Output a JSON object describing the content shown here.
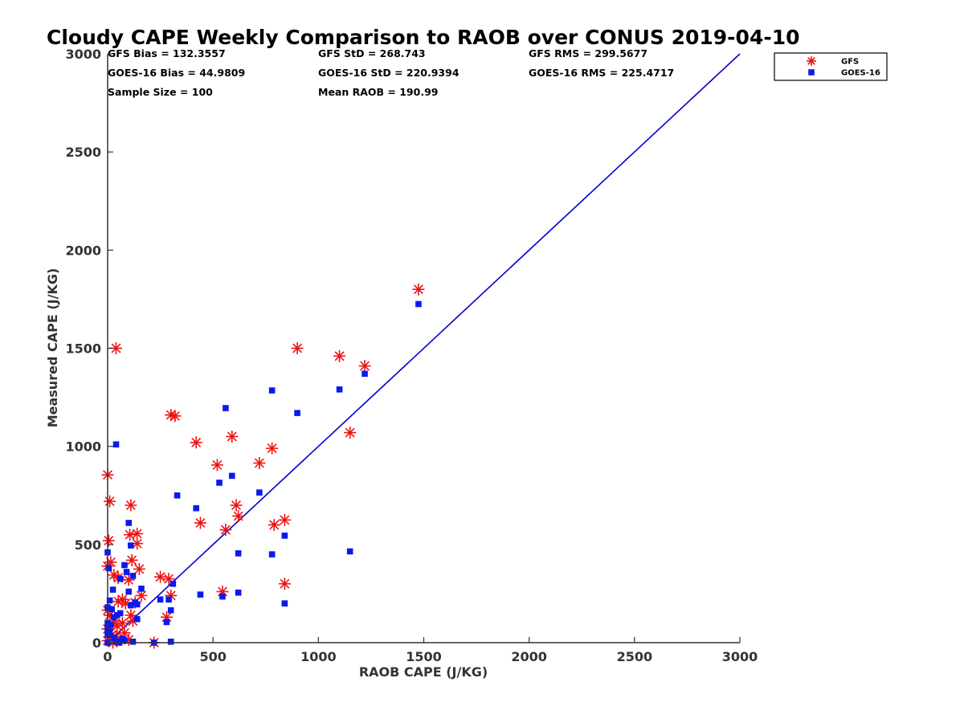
{
  "chart_data": {
    "type": "scatter",
    "title": "Cloudy CAPE Weekly Comparison to RAOB over CONUS 2019-04-10",
    "xlabel": "RAOB CAPE (J/KG)",
    "ylabel": "Measured CAPE (J/KG)",
    "xlim": [
      0,
      3000
    ],
    "ylim": [
      0,
      3000
    ],
    "xticks": [
      0,
      500,
      1000,
      1500,
      2000,
      2500,
      3000
    ],
    "yticks": [
      0,
      500,
      1000,
      1500,
      2000,
      2500,
      3000
    ],
    "grid": false,
    "legend_position": "top-right",
    "stats": [
      "GFS Bias = 132.3557",
      "GFS StD = 268.743",
      "GFS RMS = 299.5677",
      "GOES-16 Bias = 44.9809",
      "GOES-16 StD = 220.9394",
      "GOES-16 RMS = 225.4717",
      "Sample Size = 100",
      "Mean RAOB = 190.99"
    ],
    "reference_line": {
      "x": [
        0,
        3000
      ],
      "y": [
        0,
        3000
      ],
      "color": "#0000cc"
    },
    "series": [
      {
        "name": "GFS",
        "marker": "asterisk",
        "color": "#ee1111",
        "points": [
          [
            1475,
            1800
          ],
          [
            900,
            1500
          ],
          [
            1100,
            1460
          ],
          [
            1220,
            1410
          ],
          [
            40,
            1500
          ],
          [
            300,
            1160
          ],
          [
            320,
            1155
          ],
          [
            590,
            1050
          ],
          [
            1150,
            1070
          ],
          [
            420,
            1020
          ],
          [
            780,
            990
          ],
          [
            520,
            905
          ],
          [
            720,
            915
          ],
          [
            0,
            855
          ],
          [
            10,
            720
          ],
          [
            110,
            700
          ],
          [
            610,
            700
          ],
          [
            620,
            645
          ],
          [
            840,
            625
          ],
          [
            790,
            600
          ],
          [
            440,
            610
          ],
          [
            560,
            575
          ],
          [
            140,
            555
          ],
          [
            105,
            550
          ],
          [
            5,
            520
          ],
          [
            140,
            505
          ],
          [
            115,
            420
          ],
          [
            15,
            410
          ],
          [
            0,
            390
          ],
          [
            150,
            375
          ],
          [
            30,
            345
          ],
          [
            50,
            330
          ],
          [
            250,
            335
          ],
          [
            290,
            325
          ],
          [
            840,
            300
          ],
          [
            100,
            320
          ],
          [
            545,
            260
          ],
          [
            160,
            240
          ],
          [
            300,
            240
          ],
          [
            70,
            220
          ],
          [
            50,
            210
          ],
          [
            85,
            200
          ],
          [
            130,
            205
          ],
          [
            0,
            165
          ],
          [
            10,
            140
          ],
          [
            110,
            140
          ],
          [
            280,
            130
          ],
          [
            30,
            110
          ],
          [
            70,
            100
          ],
          [
            45,
            85
          ],
          [
            120,
            110
          ],
          [
            0,
            70
          ],
          [
            20,
            40
          ],
          [
            80,
            50
          ],
          [
            40,
            30
          ],
          [
            60,
            15
          ],
          [
            0,
            10
          ],
          [
            220,
            0
          ],
          [
            100,
            15
          ],
          [
            25,
            0
          ]
        ]
      },
      {
        "name": "GOES-16",
        "marker": "square",
        "color": "#0a1aee",
        "points": [
          [
            1475,
            1725
          ],
          [
            1220,
            1370
          ],
          [
            1100,
            1290
          ],
          [
            780,
            1285
          ],
          [
            900,
            1170
          ],
          [
            560,
            1195
          ],
          [
            40,
            1010
          ],
          [
            590,
            850
          ],
          [
            530,
            815
          ],
          [
            720,
            765
          ],
          [
            330,
            750
          ],
          [
            420,
            685
          ],
          [
            100,
            610
          ],
          [
            840,
            545
          ],
          [
            110,
            495
          ],
          [
            1150,
            465
          ],
          [
            620,
            455
          ],
          [
            780,
            450
          ],
          [
            0,
            460
          ],
          [
            80,
            395
          ],
          [
            5,
            380
          ],
          [
            90,
            360
          ],
          [
            60,
            325
          ],
          [
            120,
            340
          ],
          [
            310,
            300
          ],
          [
            25,
            270
          ],
          [
            160,
            275
          ],
          [
            100,
            260
          ],
          [
            620,
            255
          ],
          [
            440,
            245
          ],
          [
            545,
            235
          ],
          [
            250,
            220
          ],
          [
            290,
            220
          ],
          [
            10,
            215
          ],
          [
            840,
            200
          ],
          [
            130,
            205
          ],
          [
            110,
            190
          ],
          [
            140,
            195
          ],
          [
            0,
            180
          ],
          [
            20,
            170
          ],
          [
            300,
            165
          ],
          [
            60,
            150
          ],
          [
            45,
            140
          ],
          [
            30,
            130
          ],
          [
            140,
            120
          ],
          [
            0,
            100
          ],
          [
            280,
            105
          ],
          [
            15,
            90
          ],
          [
            0,
            70
          ],
          [
            10,
            55
          ],
          [
            0,
            40
          ],
          [
            30,
            25
          ],
          [
            70,
            20
          ],
          [
            80,
            10
          ],
          [
            120,
            5
          ],
          [
            300,
            5
          ],
          [
            220,
            0
          ],
          [
            0,
            0
          ],
          [
            40,
            5
          ],
          [
            55,
            0
          ]
        ]
      }
    ]
  }
}
